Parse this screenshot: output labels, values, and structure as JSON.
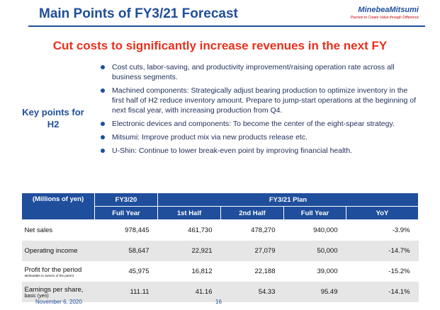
{
  "header": {
    "title": "Main Points of FY3/21 Forecast",
    "logo": "MinebeaMitsumi",
    "tagline": "Passion to Create Value through Difference"
  },
  "headline": "Cut costs to significantly increase revenues in the next FY",
  "key_points": {
    "label": "Key points for H2",
    "items": [
      "Cost cuts, labor-saving, and productivity improvement/raising operation rate across all business segments.",
      "Machined components: Strategically adjust bearing production to optimize inventory in the first half of H2 reduce inventory amount. Prepare to jump-start operations at the beginning of next fiscal year, with increasing production from Q4.",
      "Electronic devices and components: To become the center of the eight-spear strategy.",
      "Mitsumi: Improve product mix via new products release etc.",
      "U-Shin: Continue to lower break-even point by improving financial health."
    ]
  },
  "table": {
    "unit": "(Millions of yen)",
    "group_headers": [
      "FY3/20",
      "FY3/21 Plan"
    ],
    "columns": [
      "Full Year",
      "1st Half",
      "2nd Half",
      "Full Year",
      "YoY"
    ],
    "rows": [
      {
        "label": "Net sales",
        "cells": [
          "978,445",
          "461,730",
          "478,270",
          "940,000",
          "-3.9%"
        ]
      },
      {
        "label": "Operating income",
        "cells": [
          "58,647",
          "22,921",
          "27,079",
          "50,000",
          "-14.7%"
        ]
      },
      {
        "label": "Profit for the period",
        "sublabel": "attributable to owners of the parent",
        "cells": [
          "45,975",
          "16,812",
          "22,188",
          "39,000",
          "-15.2%"
        ]
      },
      {
        "label": "Earnings per share,",
        "sublabel": "basic (yen)",
        "cells": [
          "111.11",
          "41.16",
          "54.33",
          "95.49",
          "-14.1%"
        ]
      }
    ]
  },
  "footer": {
    "date": "November 6, 2020",
    "page": "16"
  }
}
